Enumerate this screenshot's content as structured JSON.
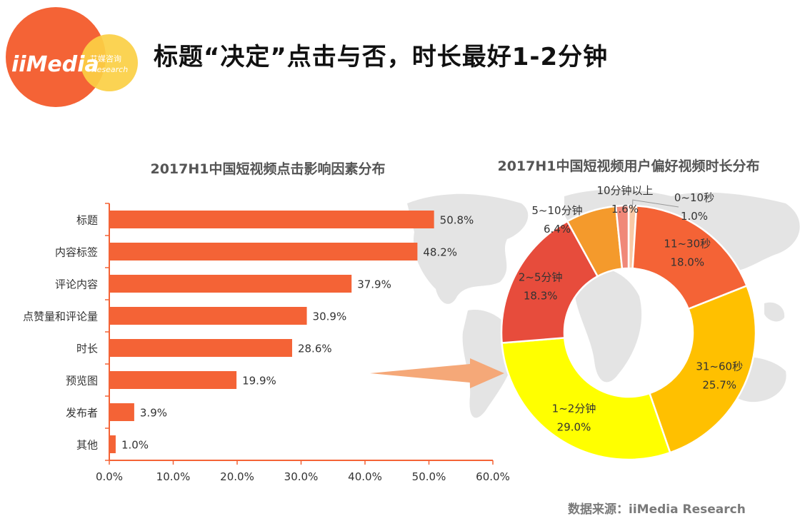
{
  "header": {
    "title": "标题“决定”点击与否，时长最好1-2分钟",
    "logo_main": "iiMedia",
    "logo_cn": "艾媒咨询",
    "logo_sub": "Research"
  },
  "source": "数据来源：iiMedia Research",
  "colors": {
    "bar": "#F46336",
    "logo_red": "#F46336",
    "logo_yellow": "#FBCF44",
    "world_map": "#E4E4E4",
    "arrow": "#F5A878"
  },
  "chart_data": [
    {
      "type": "bar",
      "orientation": "horizontal",
      "title": "2017H1中国短视频点击影响因素分布",
      "categories": [
        "标题",
        "内容标签",
        "评论内容",
        "点赞量和评论量",
        "时长",
        "预览图",
        "发布者",
        "其他"
      ],
      "values": [
        50.8,
        48.2,
        37.9,
        30.9,
        28.6,
        19.9,
        3.9,
        1.0
      ],
      "value_labels": [
        "50.8%",
        "48.2%",
        "37.9%",
        "30.9%",
        "28.6%",
        "19.9%",
        "3.9%",
        "1.0%"
      ],
      "xlim": [
        0,
        60
      ],
      "xticks": [
        "0.0%",
        "10.0%",
        "20.0%",
        "30.0%",
        "40.0%",
        "50.0%",
        "60.0%"
      ],
      "grid": false,
      "color": "#F46336"
    },
    {
      "type": "pie",
      "donut": true,
      "title": "2017H1中国短视频用户偏好视频时长分布",
      "slices": [
        {
          "label": "0~10秒",
          "value": 1.0,
          "value_label": "1.0%",
          "color": "#F9C9A6"
        },
        {
          "label": "11~30秒",
          "value": 18.0,
          "value_label": "18.0%",
          "color": "#F46336"
        },
        {
          "label": "31~60秒",
          "value": 25.7,
          "value_label": "25.7%",
          "color": "#FFC000"
        },
        {
          "label": "1~2分钟",
          "value": 29.0,
          "value_label": "29.0%",
          "color": "#FFFF00"
        },
        {
          "label": "2~5分钟",
          "value": 18.3,
          "value_label": "18.3%",
          "color": "#E74C3C"
        },
        {
          "label": "5~10分钟",
          "value": 6.4,
          "value_label": "6.4%",
          "color": "#F49A2C"
        },
        {
          "label": "10分钟以上",
          "value": 1.6,
          "value_label": "1.6%",
          "color": "#F08878"
        }
      ]
    }
  ]
}
